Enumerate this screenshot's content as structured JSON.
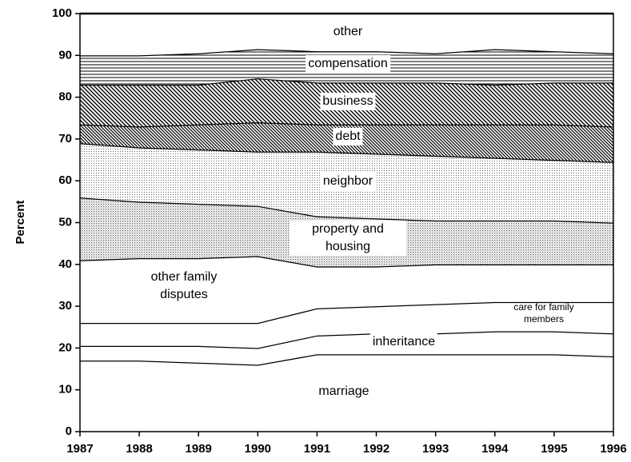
{
  "chart_data": {
    "type": "stacked_area",
    "y_label": "Percent",
    "x": [
      1987,
      1988,
      1989,
      1990,
      1991,
      1992,
      1993,
      1994,
      1995,
      1996
    ],
    "xlim": [
      1987,
      1996
    ],
    "xticks": [
      1987,
      1988,
      1989,
      1990,
      1991,
      1992,
      1993,
      1994,
      1995,
      1996
    ],
    "ylim": [
      0,
      100
    ],
    "yticks": [
      0,
      10,
      20,
      30,
      40,
      50,
      60,
      70,
      80,
      90,
      100
    ],
    "series": [
      {
        "name": "marriage",
        "values": [
          17,
          17,
          16.5,
          16,
          18.5,
          18.5,
          18.5,
          18.5,
          18.5,
          18
        ]
      },
      {
        "name": "inheritance",
        "values": [
          3.5,
          3.5,
          4,
          4,
          4.5,
          5,
          5,
          5.5,
          5.5,
          5.5
        ]
      },
      {
        "name": "care for family members",
        "values": [
          5.5,
          5.5,
          5.5,
          6,
          6.5,
          6.5,
          7,
          7,
          7,
          7.5
        ]
      },
      {
        "name": "other family disputes",
        "values": [
          15,
          15.5,
          15.5,
          16,
          10,
          9.5,
          9.5,
          9,
          9,
          9
        ]
      },
      {
        "name": "property and housing",
        "values": [
          15,
          13.5,
          13,
          12,
          12,
          11.5,
          10.5,
          10.5,
          10.5,
          10
        ]
      },
      {
        "name": "neighbor",
        "values": [
          13,
          13,
          13,
          13,
          15.5,
          15.5,
          15.5,
          15,
          14.5,
          14.5
        ]
      },
      {
        "name": "debt",
        "values": [
          4.5,
          5,
          6,
          7,
          6.5,
          7,
          7.5,
          8,
          8.5,
          8.5
        ]
      },
      {
        "name": "business",
        "values": [
          9.5,
          10,
          9.5,
          10.5,
          10,
          10,
          10,
          9.5,
          10,
          10.5
        ]
      },
      {
        "name": "compensation",
        "values": [
          7,
          7,
          7.5,
          7,
          7.5,
          7.5,
          7,
          8.5,
          7.5,
          7
        ]
      },
      {
        "name": "other",
        "values": [
          10,
          10,
          9.5,
          8.5,
          9,
          9,
          9.5,
          8.5,
          9,
          9.5
        ]
      }
    ]
  }
}
